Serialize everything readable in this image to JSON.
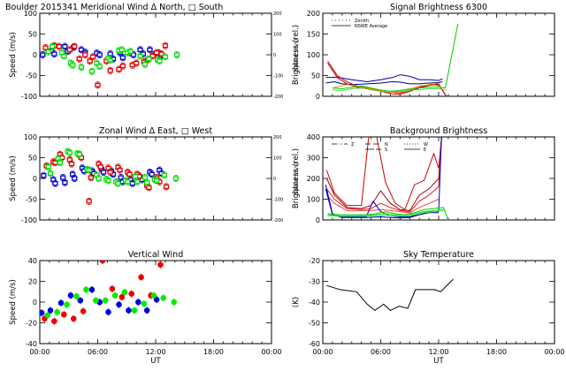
{
  "chart_data": [
    {
      "id": "meridional",
      "type": "scatter",
      "title": "Boulder   2015341     Meridional Wind   Δ North, □ South",
      "ylabel": "Speed (m/s)",
      "ylabel_right": "Speed (m/s)",
      "xlim": [
        0,
        24
      ],
      "ylim": [
        -100,
        100
      ],
      "yticks": [
        "100",
        "50",
        "0",
        "-50",
        "-100"
      ],
      "yticks_right": [
        "200",
        "100",
        "0",
        "-100",
        "-200"
      ],
      "series": [
        {
          "name": "blue",
          "color": "#0000cc",
          "x": [
            0.3,
            1.2,
            1.5,
            2.6,
            2.9,
            3.5,
            4.3,
            4.7,
            5.9,
            6.2,
            7.3,
            7.6,
            8.3,
            8.6,
            9.3,
            9.7,
            10.4,
            10.7,
            11.4,
            11.8,
            12.3,
            12.6
          ],
          "y": [
            0,
            10,
            2,
            20,
            8,
            18,
            12,
            6,
            4,
            0,
            2,
            -10,
            5,
            -7,
            5,
            0,
            12,
            2,
            12,
            0,
            5,
            -3
          ]
        },
        {
          "name": "red",
          "color": "#dd0000",
          "x": [
            0.6,
            1.5,
            2.0,
            3.1,
            3.6,
            4.1,
            4.7,
            5.2,
            5.5,
            6.0,
            6.9,
            7.3,
            8.2,
            8.6,
            9.6,
            10.0,
            10.8,
            11.2,
            11.7,
            12.1,
            12.6,
            13.0
          ],
          "y": [
            17,
            22,
            20,
            12,
            20,
            -10,
            0,
            -15,
            -5,
            -73,
            -15,
            -38,
            -35,
            -27,
            -25,
            -20,
            -17,
            -12,
            -3,
            5,
            2,
            22
          ]
        },
        {
          "name": "green",
          "color": "#00dd00",
          "x": [
            0.9,
            1.3,
            2.3,
            2.5,
            3.2,
            3.4,
            4.3,
            5.4,
            5.9,
            6.2,
            7.1,
            7.3,
            8.2,
            8.5,
            9.1,
            9.4,
            10.4,
            10.9,
            11.3,
            12.2,
            12.4,
            13.0,
            14.2
          ],
          "y": [
            7,
            20,
            5,
            -3,
            -20,
            -25,
            -30,
            -40,
            -20,
            -28,
            -8,
            -13,
            10,
            12,
            5,
            8,
            -3,
            -23,
            -10,
            -12,
            -15,
            -5,
            0
          ]
        }
      ]
    },
    {
      "id": "signal",
      "type": "line",
      "title": "Signal Brightness      6300",
      "ylabel": "Brightness (rel.)",
      "xlim": [
        0,
        24
      ],
      "ylim": [
        0,
        200
      ],
      "yticks": [
        "200",
        "150",
        "100",
        "50",
        "0"
      ],
      "legend": [
        "Zenith",
        "NSWE Average"
      ],
      "legend_position": "top-left",
      "series": [
        {
          "name": "blue-upper",
          "color": "#0000aa",
          "x": [
            0.3,
            1.5,
            3.0,
            4.6,
            6.0,
            7.2,
            8.0,
            9.0,
            10.0,
            11.0,
            12.0,
            12.4
          ],
          "y": [
            45,
            46,
            40,
            35,
            40,
            45,
            52,
            48,
            40,
            40,
            38,
            42
          ]
        },
        {
          "name": "blue-lower",
          "color": "#000088",
          "x": [
            0.3,
            1.2,
            2.0,
            3.2,
            4.6,
            6.0,
            7.2,
            8.0,
            9.0,
            10.0,
            11.0,
            12.0,
            12.4
          ],
          "y": [
            32,
            35,
            30,
            28,
            30,
            32,
            35,
            34,
            30,
            30,
            32,
            33,
            35
          ]
        },
        {
          "name": "red-1",
          "color": "#dd0000",
          "x": [
            0.5,
            1.5,
            2.5,
            3.5,
            4.6,
            6.0,
            7.2,
            8.0,
            9.0,
            10.0,
            11.0,
            12.0,
            12.8
          ],
          "y": [
            85,
            50,
            35,
            25,
            20,
            15,
            10,
            8,
            15,
            22,
            28,
            30,
            0
          ]
        },
        {
          "name": "red-2",
          "color": "#aa0000",
          "x": [
            0.5,
            1.5,
            2.5,
            3.5,
            4.6,
            6.0,
            7.2,
            8.0,
            9.0,
            10.0,
            11.0,
            12.0,
            12.8
          ],
          "y": [
            80,
            45,
            30,
            22,
            18,
            12,
            6,
            5,
            12,
            20,
            26,
            28,
            0
          ]
        },
        {
          "name": "green-1",
          "color": "#00cc00",
          "x": [
            1.0,
            2.0,
            3.0,
            4.0,
            5.0,
            6.0,
            7.0,
            8.0,
            9.0,
            10.0,
            11.0,
            12.0,
            12.7,
            14.0
          ],
          "y": [
            20,
            18,
            22,
            25,
            20,
            15,
            12,
            14,
            18,
            20,
            22,
            22,
            20,
            175
          ]
        },
        {
          "name": "green-2",
          "color": "#44dd44",
          "x": [
            1.0,
            2.0,
            3.0,
            4.0,
            5.0,
            6.0,
            7.0,
            8.0,
            9.0,
            10.0,
            11.0,
            12.0,
            12.8
          ],
          "y": [
            15,
            14,
            18,
            20,
            18,
            12,
            10,
            12,
            15,
            16,
            18,
            18,
            15
          ]
        },
        {
          "name": "olive",
          "color": "#bbaa00",
          "x": [
            1.0,
            2.5,
            4.0,
            5.5,
            7.0,
            8.5,
            10.0,
            11.5,
            12.5
          ],
          "y": [
            20,
            28,
            22,
            15,
            10,
            12,
            25,
            28,
            20
          ]
        }
      ]
    },
    {
      "id": "zonal",
      "type": "scatter",
      "title": "Zonal Wind      Δ East, □ West",
      "ylabel": "Speed (m/s)",
      "ylabel_right": "Speed (m/s)",
      "xlim": [
        0,
        24
      ],
      "ylim": [
        -100,
        100
      ],
      "yticks": [
        "100",
        "50",
        "0",
        "-50",
        "-100"
      ],
      "yticks_right": [
        "200",
        "100",
        "0",
        "-100",
        "-200"
      ],
      "series": [
        {
          "name": "blue",
          "color": "#0000cc",
          "x": [
            0.4,
            1.4,
            1.6,
            2.4,
            2.6,
            3.4,
            3.6,
            4.4,
            4.6,
            5.4,
            5.6,
            6.4,
            6.6,
            7.4,
            7.6,
            8.4,
            8.6,
            9.4,
            9.6,
            10.4,
            10.6,
            11.4,
            11.6,
            12.4,
            12.6
          ],
          "y": [
            7,
            -3,
            -12,
            2,
            -10,
            10,
            0,
            25,
            18,
            18,
            12,
            22,
            15,
            18,
            10,
            2,
            -8,
            -3,
            -12,
            3,
            -3,
            15,
            10,
            20,
            12
          ]
        },
        {
          "name": "red",
          "color": "#dd0000",
          "x": [
            0.7,
            1.4,
            1.6,
            2.1,
            2.3,
            3.1,
            3.3,
            4.1,
            4.3,
            5.1,
            5.3,
            6.1,
            6.3,
            7.1,
            7.3,
            8.1,
            8.3,
            9.1,
            9.3,
            10.1,
            10.3,
            11.1,
            11.3,
            12.1,
            12.4,
            13.1
          ],
          "y": [
            30,
            40,
            38,
            58,
            50,
            45,
            35,
            57,
            50,
            -55,
            2,
            35,
            28,
            25,
            15,
            27,
            20,
            15,
            10,
            10,
            5,
            -17,
            -22,
            2,
            -8,
            -20
          ]
        },
        {
          "name": "green",
          "color": "#00dd00",
          "x": [
            0.9,
            1.1,
            1.9,
            2.1,
            2.9,
            3.1,
            3.9,
            4.1,
            4.9,
            5.1,
            5.9,
            6.1,
            6.9,
            7.1,
            7.9,
            8.1,
            8.9,
            9.1,
            9.9,
            10.1,
            10.9,
            11.1,
            11.9,
            12.1,
            12.9,
            14.1
          ],
          "y": [
            28,
            12,
            48,
            38,
            65,
            62,
            60,
            58,
            22,
            20,
            8,
            0,
            -2,
            -5,
            -8,
            -12,
            -5,
            -8,
            5,
            -8,
            2,
            -10,
            -3,
            -5,
            8,
            0
          ]
        }
      ]
    },
    {
      "id": "background",
      "type": "line",
      "title": "Background Brightness",
      "ylabel": "Brightness (rel.)",
      "xlim": [
        0,
        24
      ],
      "ylim": [
        0,
        400
      ],
      "yticks": [
        "400",
        "300",
        "200",
        "100",
        "0"
      ],
      "legend": [
        "Z",
        "N",
        "S",
        "W",
        "E"
      ],
      "legend_position": "top",
      "series": [
        {
          "name": "red-1",
          "color": "#cc0000",
          "x": [
            0.4,
            1.2,
            2.5,
            4.0,
            4.8,
            5.5,
            6.5,
            7.5,
            8.5,
            9.5,
            10.5,
            11.5,
            12.0,
            12.3
          ],
          "y": [
            240,
            130,
            70,
            70,
            420,
            420,
            180,
            80,
            50,
            170,
            190,
            320,
            250,
            400
          ]
        },
        {
          "name": "red-2",
          "color": "#aa0000",
          "x": [
            0.4,
            1.2,
            2.5,
            4.0,
            5.0,
            6.0,
            7.0,
            8.0,
            9.0,
            10.0,
            11.0,
            12.0,
            12.3
          ],
          "y": [
            200,
            120,
            60,
            55,
            70,
            140,
            80,
            50,
            45,
            120,
            150,
            200,
            400
          ]
        },
        {
          "name": "red-3",
          "color": "#dd2222",
          "x": [
            0.4,
            1.2,
            2.5,
            4.0,
            5.0,
            6.0,
            7.0,
            8.0,
            9.0,
            10.0,
            11.0,
            12.0,
            12.3
          ],
          "y": [
            150,
            100,
            55,
            50,
            55,
            80,
            60,
            45,
            40,
            90,
            120,
            160,
            400
          ]
        },
        {
          "name": "red-4",
          "color": "#ee4444",
          "x": [
            0.4,
            1.2,
            2.5,
            4.0,
            5.0,
            6.0,
            7.0,
            8.0,
            9.0,
            10.0,
            11.0,
            12.0
          ],
          "y": [
            120,
            80,
            45,
            45,
            45,
            50,
            45,
            40,
            35,
            60,
            80,
            100
          ]
        },
        {
          "name": "blue-1",
          "color": "#0000cc",
          "x": [
            0.3,
            1.0,
            2.0,
            3.0,
            4.5,
            5.2,
            6.0,
            7.0,
            8.0,
            9.0,
            10.0,
            11.0,
            12.0,
            12.3
          ],
          "y": [
            170,
            30,
            15,
            15,
            15,
            90,
            40,
            20,
            15,
            15,
            30,
            40,
            40,
            400
          ]
        },
        {
          "name": "blue-2",
          "color": "#0000aa",
          "x": [
            0.3,
            1.0,
            2.0,
            3.0,
            4.5,
            6.0,
            7.0,
            8.0,
            9.0,
            10.0,
            11.0,
            12.0
          ],
          "y": [
            150,
            25,
            12,
            12,
            12,
            15,
            12,
            10,
            12,
            25,
            35,
            35
          ]
        },
        {
          "name": "green-1",
          "color": "#00cc00",
          "x": [
            0.5,
            1.5,
            2.5,
            3.5,
            4.5,
            5.5,
            6.5,
            7.5,
            8.5,
            9.5,
            10.5,
            11.5,
            12.5,
            13.0
          ],
          "y": [
            30,
            25,
            25,
            25,
            25,
            30,
            40,
            30,
            25,
            35,
            50,
            55,
            60,
            0
          ]
        },
        {
          "name": "green-2",
          "color": "#22dd22",
          "x": [
            0.5,
            1.5,
            2.5,
            3.5,
            4.5,
            5.5,
            6.5,
            7.5,
            8.5,
            9.5,
            10.5,
            11.5,
            12.5
          ],
          "y": [
            25,
            20,
            20,
            20,
            22,
            25,
            30,
            25,
            20,
            30,
            40,
            45,
            50
          ]
        },
        {
          "name": "green-3",
          "color": "#44ee44",
          "x": [
            0.5,
            1.5,
            2.5,
            3.5,
            4.5,
            5.5,
            6.5,
            7.5,
            8.5,
            9.5,
            10.5,
            11.5,
            12.5
          ],
          "y": [
            20,
            18,
            18,
            18,
            18,
            20,
            22,
            20,
            18,
            25,
            35,
            40,
            45
          ]
        }
      ]
    },
    {
      "id": "vertical",
      "type": "scatter",
      "title": "Vertical Wind",
      "ylabel": "Speed (m/s)",
      "xlabel": "UT",
      "xlim": [
        0,
        24
      ],
      "ylim": [
        -50,
        50
      ],
      "yticks": [
        "40",
        "20",
        "0",
        "-20",
        "-40"
      ],
      "xticks": [
        "00:00",
        "06:00",
        "12:00",
        "18:00",
        "00:00"
      ],
      "series": [
        {
          "name": "blue",
          "color": "#0000dd",
          "x": [
            0.2,
            1.1,
            2.2,
            3.2,
            4.2,
            5.4,
            6.2,
            7.1,
            8.2,
            9.2,
            10.2,
            11.1,
            12.1
          ],
          "y": [
            -13,
            -10,
            -1,
            8,
            2,
            15,
            0,
            -12,
            -3,
            -10,
            0,
            -10,
            3
          ]
        },
        {
          "name": "red",
          "color": "#ee0000",
          "x": [
            0.5,
            1.5,
            2.5,
            3.5,
            4.5,
            6.5,
            7.5,
            8.5,
            9.5,
            10.5,
            11.5,
            12.5
          ],
          "y": [
            -20,
            -23,
            -15,
            -20,
            -11,
            50,
            16,
            6,
            10,
            30,
            8,
            45
          ]
        },
        {
          "name": "green",
          "color": "#00ee00",
          "x": [
            0.8,
            1.8,
            2.8,
            3.8,
            4.8,
            5.8,
            6.8,
            7.8,
            8.8,
            9.8,
            10.8,
            11.8,
            12.8,
            13.9
          ],
          "y": [
            -16,
            -12,
            -3,
            7,
            15,
            2,
            2,
            8,
            12,
            -10,
            -2,
            8,
            5,
            0
          ]
        }
      ]
    },
    {
      "id": "skytemp",
      "type": "line",
      "title": "Sky Temperature",
      "ylabel": "(K)",
      "xlabel": "UT",
      "xlim": [
        0,
        24
      ],
      "ylim": [
        -60,
        -20
      ],
      "yticks": [
        "-20",
        "-30",
        "-40",
        "-50",
        "-60"
      ],
      "xticks": [
        "00:00",
        "06:00",
        "12:00",
        "18:00",
        "00:00"
      ],
      "series": [
        {
          "name": "sky-temperature",
          "color": "#000000",
          "x": [
            0.4,
            1.8,
            3.5,
            4.6,
            5.4,
            6.3,
            7.0,
            7.9,
            8.8,
            9.6,
            10.4,
            11.6,
            12.2,
            13.5
          ],
          "y": [
            -32,
            -34,
            -35,
            -41,
            -44,
            -41,
            -44,
            -42,
            -43,
            -34,
            -34,
            -34,
            -35,
            -29
          ]
        }
      ]
    }
  ]
}
